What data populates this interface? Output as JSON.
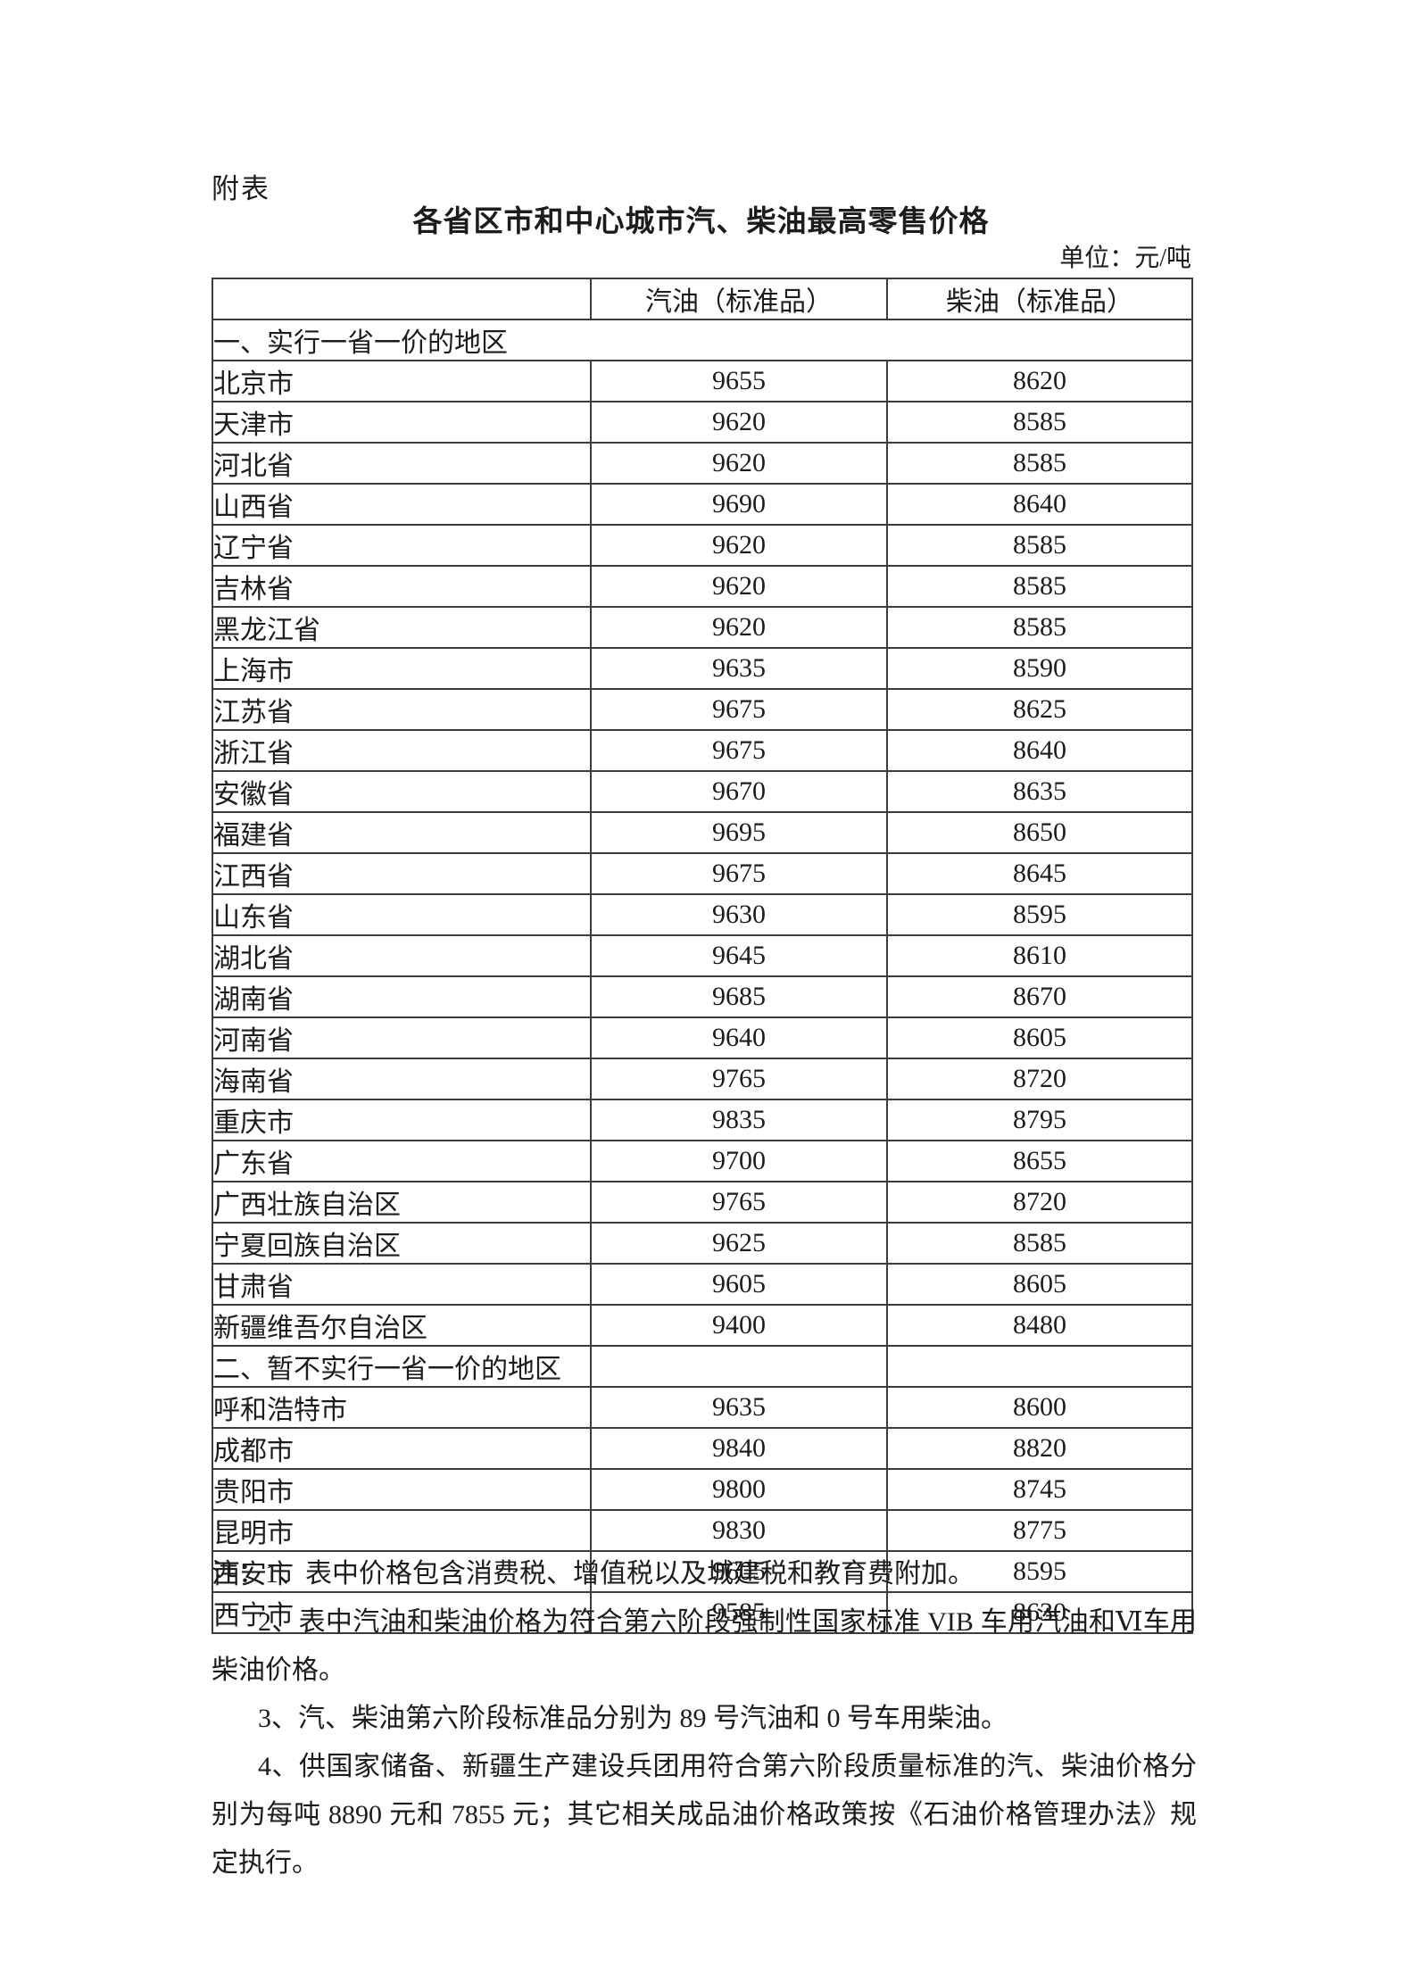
{
  "page": {
    "annex_label": "附表",
    "title": "各省区市和中心城市汽、柴油最高零售价格",
    "unit_label": "单位：元/吨"
  },
  "table": {
    "columns": [
      "",
      "汽油（标准品）",
      "柴油（标准品）"
    ],
    "sections": [
      {
        "heading": "一、实行一省一价的地区",
        "merged": true,
        "rows": [
          {
            "region": "北京市",
            "gasoline": "9655",
            "diesel": "8620"
          },
          {
            "region": "天津市",
            "gasoline": "9620",
            "diesel": "8585"
          },
          {
            "region": "河北省",
            "gasoline": "9620",
            "diesel": "8585"
          },
          {
            "region": "山西省",
            "gasoline": "9690",
            "diesel": "8640"
          },
          {
            "region": "辽宁省",
            "gasoline": "9620",
            "diesel": "8585"
          },
          {
            "region": "吉林省",
            "gasoline": "9620",
            "diesel": "8585"
          },
          {
            "region": "黑龙江省",
            "gasoline": "9620",
            "diesel": "8585"
          },
          {
            "region": "上海市",
            "gasoline": "9635",
            "diesel": "8590"
          },
          {
            "region": "江苏省",
            "gasoline": "9675",
            "diesel": "8625"
          },
          {
            "region": "浙江省",
            "gasoline": "9675",
            "diesel": "8640"
          },
          {
            "region": "安徽省",
            "gasoline": "9670",
            "diesel": "8635"
          },
          {
            "region": "福建省",
            "gasoline": "9695",
            "diesel": "8650"
          },
          {
            "region": "江西省",
            "gasoline": "9675",
            "diesel": "8645"
          },
          {
            "region": "山东省",
            "gasoline": "9630",
            "diesel": "8595"
          },
          {
            "region": "湖北省",
            "gasoline": "9645",
            "diesel": "8610"
          },
          {
            "region": "湖南省",
            "gasoline": "9685",
            "diesel": "8670"
          },
          {
            "region": "河南省",
            "gasoline": "9640",
            "diesel": "8605"
          },
          {
            "region": "海南省",
            "gasoline": "9765",
            "diesel": "8720"
          },
          {
            "region": "重庆市",
            "gasoline": "9835",
            "diesel": "8795"
          },
          {
            "region": "广东省",
            "gasoline": "9700",
            "diesel": "8655"
          },
          {
            "region": "广西壮族自治区",
            "gasoline": "9765",
            "diesel": "8720"
          },
          {
            "region": "宁夏回族自治区",
            "gasoline": "9625",
            "diesel": "8585"
          },
          {
            "region": "甘肃省",
            "gasoline": "9605",
            "diesel": "8605"
          },
          {
            "region": "新疆维吾尔自治区",
            "gasoline": "9400",
            "diesel": "8480"
          }
        ]
      },
      {
        "heading": "二、暂不实行一省一价的地区",
        "merged": false,
        "rows": [
          {
            "region": "呼和浩特市",
            "gasoline": "9635",
            "diesel": "8600"
          },
          {
            "region": "成都市",
            "gasoline": "9840",
            "diesel": "8820"
          },
          {
            "region": "贵阳市",
            "gasoline": "9800",
            "diesel": "8745"
          },
          {
            "region": "昆明市",
            "gasoline": "9830",
            "diesel": "8775"
          },
          {
            "region": "西安市",
            "gasoline": "9605",
            "diesel": "8595"
          },
          {
            "region": "西宁市",
            "gasoline": "9585",
            "diesel": "8630"
          }
        ]
      }
    ]
  },
  "notes": {
    "prefix": "注：",
    "items": [
      "1、表中价格包含消费税、增值税以及城建税和教育费附加。",
      "2、表中汽油和柴油价格为符合第六阶段强制性国家标准 VIB 车用汽油和Ⅵ车用柴油价格。",
      "3、汽、柴油第六阶段标准品分别为 89 号汽油和 0 号车用柴油。",
      "4、供国家储备、新疆生产建设兵团用符合第六阶段质量标准的汽、柴油价格分别为每吨 8890 元和 7855 元；其它相关成品油价格政策按《石油价格管理办法》规定执行。"
    ]
  }
}
